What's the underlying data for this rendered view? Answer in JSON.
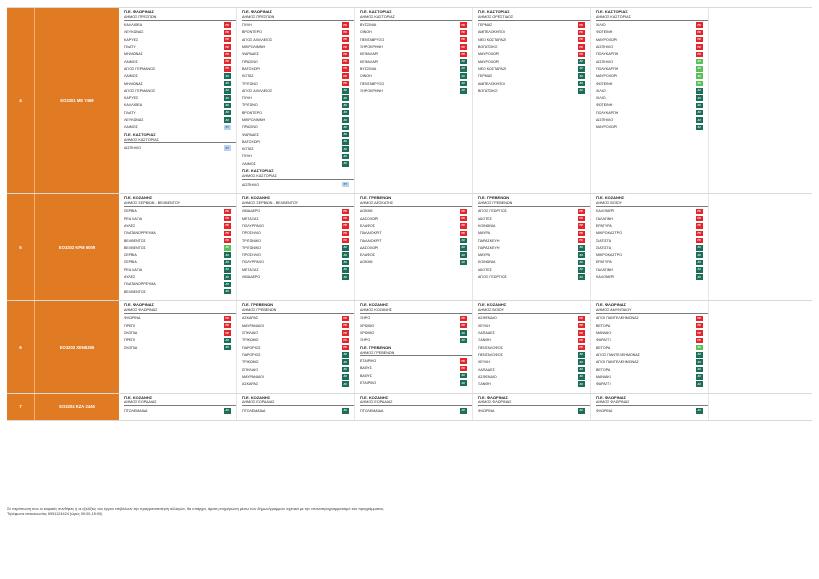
{
  "badges": {
    "ps": "ΠΣ",
    "as": "ΑΣ",
    "gs": "ΑΣ",
    "ls": "ΣΤ"
  },
  "rows": [
    {
      "num": "4",
      "code": "ΕΟ3201 ΜΕ 7469",
      "cols": [
        [
          {
            "pe": "Π.Ε. ΦΛΩΡΙΝΑΣ",
            "dh": "ΔΗΜΟΣ ΠΡΕΣΠΩΝ",
            "items": [
              [
                "ΚΑΛΛΙΘΕΑ",
                "ps"
              ],
              [
                "ΛΕΥΚΩΝΑΣ",
                "ps"
              ],
              [
                "ΚΑΡΥΕΣ",
                "ps"
              ],
              [
                "ΠΛΑΤΥ",
                "ps"
              ],
              [
                "ΜΗΛΙΩΝΑΣ",
                "ps"
              ],
              [
                "ΛΑΙΜΟΣ",
                "ps"
              ],
              [
                "ΑΓΙΟΣ ΓΕΡΜΑΝΟΣ",
                "ps"
              ],
              [
                "ΛΑΙΜΟΣ",
                "as"
              ],
              [
                "ΜΗΛΙΩΝΑΣ",
                "as"
              ],
              [
                "ΑΓΙΟΣ ΓΕΡΜΑΝΟΣ",
                "as"
              ],
              [
                "ΚΑΡΥΕΣ",
                "as"
              ],
              [
                "ΚΑΛΛΙΘΕΑ",
                "as"
              ],
              [
                "ΠΛΑΤΥ",
                "as"
              ],
              [
                "ΛΕΥΚΩΝΑΣ",
                "as"
              ],
              [
                "ΛΑΙΜΟΣ",
                "ls"
              ]
            ]
          },
          {
            "pe": "Π.Ε. ΚΑΣΤΟΡΙΑΣ",
            "dh": "ΔΗΜΟΣ ΚΑΣΤΟΡΙΑΣ",
            "items": [
              [
                "ΔΙΣΠΗΛΙΟ",
                "ls"
              ]
            ]
          }
        ],
        [
          {
            "pe": "Π.Ε. ΦΛΩΡΙΝΑΣ",
            "dh": "ΔΗΜΟΣ ΠΡΕΣΠΩΝ",
            "items": [
              [
                "ΠΥΛΗ",
                "ps"
              ],
              [
                "ΒΡΟΝΤΕΡΟ",
                "ps"
              ],
              [
                "ΑΓΙΟΣ ΑΧΙΛΛΕΙΟΣ",
                "ps"
              ],
              [
                "ΜΙΚΡΟΛΙΜΝΗ",
                "ps"
              ],
              [
                "ΨΑΡΑΔΕΣ",
                "ps"
              ],
              [
                "ΠΡΑΣΙΝΟ",
                "ps"
              ],
              [
                "ΒΑΤΟΧΩΡΙ",
                "ps"
              ],
              [
                "ΚΟΤΑΣ",
                "ps"
              ],
              [
                "ΤΡΙΓΩΝΟ",
                "ps"
              ],
              [
                "ΑΓΙΟΣ ΑΧΙΛΛΕΙΟΣ",
                "as"
              ],
              [
                "ΠΥΛΗ",
                "as"
              ],
              [
                "ΤΡΙΓΩΝΟ",
                "as"
              ],
              [
                "ΒΡΟΝΤΕΡΟ",
                "as"
              ],
              [
                "ΜΙΚΡΟΛΙΜΝΗ",
                "as"
              ],
              [
                "ΠΡΑΣΙΝΟ",
                "as"
              ],
              [
                "ΨΑΡΑΔΕΣ",
                "as"
              ],
              [
                "ΒΑΤΟΧΩΡΙ",
                "as"
              ],
              [
                "ΚΟΤΑΣ",
                "as"
              ],
              [
                "ΠΥΛΗ",
                "as"
              ],
              [
                "ΛΑΙΜΟΣ",
                "as"
              ]
            ]
          },
          {
            "pe": "Π.Ε. ΚΑΣΤΟΡΙΑΣ",
            "dh": "ΔΗΜΟΣ ΚΑΣΤΟΡΙΑΣ",
            "items": [
              [
                "ΔΙΣΠΗΛΙΟ",
                "ls"
              ]
            ]
          }
        ],
        [
          {
            "pe": "Π.Ε. ΚΑΣΤΟΡΙΑΣ",
            "dh": "ΔΗΜΟΣ ΚΑΣΤΟΡΙΑΣ",
            "items": [
              [
                "ΒΥΣΣΙΝΙΑ",
                "ps"
              ],
              [
                "ΟΙΝΟΗ",
                "ps"
              ],
              [
                "ΠΕΝΤΑΒΡΥΣΟ",
                "ps"
              ],
              [
                "ΞΗΡΟΚΡΗΝΗ",
                "ps"
              ],
              [
                "ΚΕΦΑΛΑΡΙ",
                "ps"
              ],
              [
                "ΚΕΦΑΛΑΡΙ",
                "as"
              ],
              [
                "ΒΥΣΣΙΝΙΑ",
                "as"
              ],
              [
                "ΟΙΝΟΗ",
                "as"
              ],
              [
                "ΠΕΝΤΑΒΡΥΣΟ",
                "as"
              ],
              [
                "ΞΗΡΟΚΡΗΝΗ",
                "as"
              ]
            ]
          }
        ],
        [
          {
            "pe": "Π.Ε. ΚΑΣΤΟΡΙΑΣ",
            "dh": "ΔΗΜΟΣ ΟΡΕΣΤΙΔΟΣ",
            "items": [
              [
                "ΓΕΡΜΑΣ",
                "ps"
              ],
              [
                "ΑΜΠΕΛΟΚΗΠΟΙ",
                "ps"
              ],
              [
                "ΝΕΟ ΚΩΣΤΑΡΑΖΙ",
                "ps"
              ],
              [
                "ΒΟΓΑΤΣΙΚΟ",
                "ps"
              ],
              [
                "ΜΑΥΡΟΧΩΡΙ",
                "ps"
              ],
              [
                "ΜΑΥΡΟΧΩΡΙ",
                "as"
              ],
              [
                "ΝΕΟ ΚΩΣΤΑΡΑΖΙ",
                "as"
              ],
              [
                "ΓΕΡΜΑΣ",
                "as"
              ],
              [
                "ΑΜΠΕΛΟΚΗΠΟΙ",
                "as"
              ],
              [
                "ΒΟΓΑΤΣΙΚΟ",
                "as"
              ]
            ]
          }
        ],
        [
          {
            "pe": "Π.Ε. ΚΑΣΤΟΡΙΑΣ",
            "dh": "ΔΗΜΟΣ ΚΑΣΤΟΡΙΑΣ",
            "items": [
              [
                "ΧΙΛΙΟ",
                "ps"
              ],
              [
                "ΦΩΤΕΙΝΗ",
                "ps"
              ],
              [
                "ΜΑΥΡΟΧΩΡΙ",
                "ps"
              ],
              [
                "ΔΙΣΠΗΛΙΟ",
                "ps"
              ],
              [
                "ΠΟΛΥΚΑΡΠΗ",
                "ps"
              ],
              [
                "ΔΙΣΠΗΛΙΟ",
                "gs"
              ],
              [
                "ΠΟΛΥΚΑΡΠΗ",
                "gs"
              ],
              [
                "ΜΑΥΡΟΧΩΡΙ",
                "gs"
              ],
              [
                "ΦΩΤΕΙΝΗ",
                "gs"
              ],
              [
                "ΧΙΛΙΟ",
                "as"
              ],
              [
                "ΧΙΛΙΟ",
                "as"
              ],
              [
                "ΦΩΤΕΙΝΗ",
                "as"
              ],
              [
                "ΠΟΛΥΚΑΡΠΗ",
                "as"
              ],
              [
                "ΔΙΣΠΗΛΙΟ",
                "as"
              ],
              [
                "ΜΑΥΡΟΧΩΡΙ",
                "as"
              ]
            ]
          }
        ]
      ]
    },
    {
      "num": "5",
      "code": "ΕΟ3202 ΚΡΜ 6009",
      "cols": [
        [
          {
            "pe": "Π.Ε. ΚΟΖΑΝΗΣ",
            "dh": "ΔΗΜΟΣ ΣΕΡΒΙΩΝ - ΒΕΛΒΕΝΤΟΥ",
            "items": [
              [
                "ΣΕΡΒΙΑ",
                "ps"
              ],
              [
                "ΡΕΑ ΛΑΓΙΑ",
                "ps"
              ],
              [
                "ΑΥΛΕΣ",
                "ps"
              ],
              [
                "ΠΛΑΤΑΝΟΡΡΕΥΜΑ",
                "ps"
              ],
              [
                "ΒΕΛΒΕΝΤΟΣ",
                "ps"
              ],
              [
                "ΒΕΛΒΕΝΤΟΣ",
                "gs"
              ],
              [
                "ΣΕΡΒΙΑ",
                "as"
              ],
              [
                "ΣΕΡΒΙΑ",
                "as"
              ],
              [
                "ΡΕΑ ΛΑΓΙΑ",
                "as"
              ],
              [
                "ΑΥΛΕΣ",
                "as"
              ],
              [
                "ΠΛΑΤΑΝΟΡΡΕΥΜΑ",
                "as"
              ],
              [
                "ΒΕΛΒΕΝΤΟΣ",
                "as"
              ]
            ]
          }
        ],
        [
          {
            "pe": "Π.Ε. ΚΟΖΑΝΗΣ",
            "dh": "ΔΗΜΟΣ ΣΕΡΒΙΩΝ - ΒΕΛΒΕΝΤΟΥ",
            "items": [
              [
                "ΛΙΒΑΔΕΡΟ",
                "ps"
              ],
              [
                "ΜΕΤΑΞΑΣ",
                "ps"
              ],
              [
                "ΠΟΛΥΡΡΑΧΟ",
                "ps"
              ],
              [
                "ΠΡΟΣΗΛΙΟ",
                "ps"
              ],
              [
                "ΤΡΙΓΩΝΙΚΟ",
                "ps"
              ],
              [
                "ΤΡΙΓΩΝΙΚΟ",
                "as"
              ],
              [
                "ΠΡΟΣΗΛΙΟ",
                "as"
              ],
              [
                "ΠΟΛΥΡΡΑΧΟ",
                "as"
              ],
              [
                "ΜΕΤΑΞΑΣ",
                "as"
              ],
              [
                "ΛΙΒΑΔΕΡΟ",
                "as"
              ]
            ]
          }
        ],
        [
          {
            "pe": "Π.Ε. ΓΡΕΒΕΝΩΝ",
            "dh": "ΔΗΜΟΣ ΔΕΣΚΑΤΗΣ",
            "items": [
              [
                "ΔΟΚΙΜΙ",
                "ps"
              ],
              [
                "ΔΑΣΟΧΩΡΙ",
                "ps"
              ],
              [
                "ΕΛΑΦΟΣ",
                "ps"
              ],
              [
                "ΠΑΛΑΙΟΚΡΙΤ",
                "ps"
              ],
              [
                "ΠΑΛΑΙΟΚΡΙΤ",
                "as"
              ],
              [
                "ΔΑΣΟΧΩΡΙ",
                "as"
              ],
              [
                "ΕΛΑΦΟΣ",
                "as"
              ],
              [
                "ΔΟΚΙΜΙ",
                "as"
              ]
            ]
          }
        ],
        [
          {
            "pe": "Π.Ε. ΓΡΕΒΕΝΩΝ",
            "dh": "ΔΗΜΟΣ ΓΡΕΒΕΝΩΝ",
            "items": [
              [
                "ΑΓΙΟΣ ΓΕΩΡΓΙΟΣ",
                "ps"
              ],
              [
                "ΙΔΙΟΤΕΣ",
                "ps"
              ],
              [
                "ΚΟΙΝΩΝΙΑ",
                "ps"
              ],
              [
                "ΜΑΥΡΑ",
                "ps"
              ],
              [
                "ΠΑΡΑΣΚΕΥΗ",
                "ps"
              ],
              [
                "ΠΑΡΑΣΚΕΥΗ",
                "as"
              ],
              [
                "ΜΑΥΡΑ",
                "as"
              ],
              [
                "ΚΟΙΝΩΝΙΑ",
                "as"
              ],
              [
                "ΙΔΙΟΤΕΣ",
                "as"
              ],
              [
                "ΑΓΙΟΣ ΓΕΩΡΓΙΟΣ",
                "as"
              ]
            ]
          }
        ],
        [
          {
            "pe": "Π.Ε. ΚΟΖΑΝΗΣ",
            "dh": "ΔΗΜΟΣ ΒΟΪΟΥ",
            "items": [
              [
                "ΚΑΛΟΝΕΡΙ",
                "ps"
              ],
              [
                "ΓΑΛΑΤΙΝΗ",
                "ps"
              ],
              [
                "ΕΡΑΤΥΡΑ",
                "ps"
              ],
              [
                "ΜΙΚΡΟΚΑΣΤΡΟ",
                "ps"
              ],
              [
                "ΣΙΑΤΙΣΤΑ",
                "ps"
              ],
              [
                "ΣΙΑΤΙΣΤΑ",
                "as"
              ],
              [
                "ΜΙΚΡΟΚΑΣΤΡΟ",
                "as"
              ],
              [
                "ΕΡΑΤΥΡΑ",
                "as"
              ],
              [
                "ΓΑΛΑΤΙΝΗ",
                "as"
              ],
              [
                "ΚΑΛΟΝΕΡΙ",
                "as"
              ]
            ]
          }
        ]
      ]
    },
    {
      "num": "6",
      "code": "ΕΟ3203 ΧΕΝ5355",
      "cols": [
        [
          {
            "pe": "Π.Ε. ΦΛΩΡΙΝΑΣ",
            "dh": "ΔΗΜΟΣ ΦΛΩΡΙΝΑΣ",
            "items": [
              [
                "ΦΛΩΡΙΝΑ",
                "ps"
              ],
              [
                "ΠΡΕΠΙ",
                "ps"
              ],
              [
                "ΣΚΟΠΙΑ",
                "ps"
              ],
              [
                "ΠΡΕΠΙ",
                "as"
              ],
              [
                "ΣΚΟΠΙΑ",
                "as"
              ]
            ]
          }
        ],
        [
          {
            "pe": "Π.Ε. ΓΡΕΒΕΝΩΝ",
            "dh": "ΔΗΜΟΣ ΓΡΕΒΕΝΩΝ",
            "items": [
              [
                "ΑΣΚΑΡΑΣ",
                "ps"
              ],
              [
                "ΜΑΥΡΑΝΑΙΟΙ",
                "ps"
              ],
              [
                "ΣΠΗΛΑΙΟ",
                "ps"
              ],
              [
                "ΤΡΙΚΩΜΟ",
                "ps"
              ],
              [
                "ΠΑΡΟΡΙΟΣ",
                "ps"
              ],
              [
                "ΠΑΡΟΡΙΟΣ",
                "as"
              ],
              [
                "ΤΡΙΚΩΜΟ",
                "as"
              ],
              [
                "ΣΠΗΛΑΙΟ",
                "as"
              ],
              [
                "ΜΑΥΡΑΝΑΙΟΙ",
                "as"
              ],
              [
                "ΑΣΚΑΡΑΣ",
                "as"
              ]
            ]
          }
        ],
        [
          {
            "pe": "Π.Ε. ΚΟΖΑΝΗΣ",
            "dh": "ΔΗΜΟΣ ΚΟΖΑΝΗΣ",
            "items": [
              [
                "ΞΗΡΟ",
                "ps"
              ],
              [
                "ΧΡΩΜΙΟ",
                "ps"
              ],
              [
                "ΧΡΩΜΙΟ",
                "as"
              ],
              [
                "ΞΗΡΟ",
                "as"
              ]
            ]
          },
          {
            "pe": "Π.Ε. ΓΡΕΒΕΝΩΝ",
            "dh": "ΔΗΜΟΣ ΓΡΕΒΕΝΩΝ",
            "items": [
              [
                "ΕΤΑΙΡΙΚΟ",
                "ps"
              ],
              [
                "ΒΑΘΥΣ",
                "ps"
              ],
              [
                "ΒΑΘΥΣ",
                "as"
              ],
              [
                "ΕΤΑΙΡΙΚΟ",
                "as"
              ]
            ]
          }
        ],
        [
          {
            "pe": "Π.Ε. ΚΟΖΑΝΗΣ",
            "dh": "ΔΗΜΟΣ ΒΟΪΟΥ",
            "items": [
              [
                "ΑΣΦΕΝΔΙΟ",
                "ps"
              ],
              [
                "ΧΕΥΛΗ",
                "ps"
              ],
              [
                "ΛΑΠΑΔΕΣ",
                "ps"
              ],
              [
                "ΞΑΝΘΗ",
                "ps"
              ],
              [
                "ΠΕΝΤΑΛΟΦΟΣ",
                "ps"
              ],
              [
                "ΠΕΝΤΑΛΟΦΟΣ",
                "as"
              ],
              [
                "ΧΕΥΛΗ",
                "as"
              ],
              [
                "ΛΑΠΑΔΕΣ",
                "as"
              ],
              [
                "ΑΣΦΕΝΔΙΟ",
                "as"
              ],
              [
                "ΞΑΝΘΗ",
                "as"
              ]
            ]
          }
        ],
        [
          {
            "pe": "Π.Ε. ΦΛΩΡΙΝΑΣ",
            "dh": "ΔΗΜΟΣ ΑΜΥΝΤΑΙΟΥ",
            "items": [
              [
                "ΑΓΙΟΙ ΠΑΝΤΕΛΕΗΜΟΝΑΣ",
                "ps"
              ],
              [
                "ΒΕΤΟΡΑ",
                "ps"
              ],
              [
                "ΜΑΝΙΑΚΙ",
                "ps"
              ],
              [
                "ΦΑΡΑΓΓΙ",
                "ps"
              ],
              [
                "ΒΕΤΟΡΑ",
                "gs"
              ],
              [
                "ΑΓΙΟΣ ΠΑΝΤΕΛΕΗΜΟΝΑΣ",
                "as"
              ],
              [
                "ΑΓΙΟΙ ΠΑΝΤΕΛΕΗΜΟΝΑΣ",
                "as"
              ],
              [
                "ΒΕΤΟΡΑ",
                "as"
              ],
              [
                "ΜΑΝΙΑΚΙ",
                "as"
              ],
              [
                "ΦΑΡΑΓΓΙ",
                "as"
              ]
            ]
          }
        ]
      ]
    },
    {
      "num": "7",
      "code": "ΕΟ3204 ΚΖΑ 2446",
      "cols": [
        [
          {
            "pe": "Π.Ε. ΚΟΖΑΝΗΣ",
            "dh": "ΔΗΜΟΣ ΕΟΡΔΑΙΑΣ",
            "items": [
              [
                "ΠΤΟΛΕΜΑΪΔΑ",
                "as"
              ]
            ]
          }
        ],
        [
          {
            "pe": "Π.Ε. ΚΟΖΑΝΗΣ",
            "dh": "ΔΗΜΟΣ ΕΟΡΔΑΙΑΣ",
            "items": [
              [
                "ΠΤΟΛΕΜΑΪΔΑ",
                "as"
              ]
            ]
          }
        ],
        [
          {
            "pe": "Π.Ε. ΚΟΖΑΝΗΣ",
            "dh": "ΔΗΜΟΣ ΕΟΡΔΑΙΑΣ",
            "items": [
              [
                "ΠΤΟΛΕΜΑΪΔΑ",
                "as"
              ]
            ]
          }
        ],
        [
          {
            "pe": "Π.Ε. ΦΛΩΡΙΝΑΣ",
            "dh": "ΔΗΜΟΣ ΦΛΩΡΙΝΑΣ",
            "items": [
              [
                "ΦΛΩΡΙΝΑ",
                "as"
              ]
            ]
          }
        ],
        [
          {
            "pe": "Π.Ε. ΦΛΩΡΙΝΑΣ",
            "dh": "ΔΗΜΟΣ ΦΛΩΡΙΝΑΣ",
            "items": [
              [
                "ΦΛΩΡΙΝΑ",
                "as"
              ]
            ]
          }
        ]
      ]
    }
  ],
  "footer": {
    "line1": "Σε περίπτωση που οι καιρικές συνθήκες ή οι εξελίξεις του έργου επιβάλουν την πραγματοποίηση αλλαγών, θα υπάρχει, άμεση ενημέρωση μέσω των δήμων/γραμμών σχετικά με την επαναπρογραμματισμό του προγράμματος.",
    "line2": "Τηλέφωνα επικοινωνίας 6951124424 (ώρες 09:00-15:00)"
  }
}
